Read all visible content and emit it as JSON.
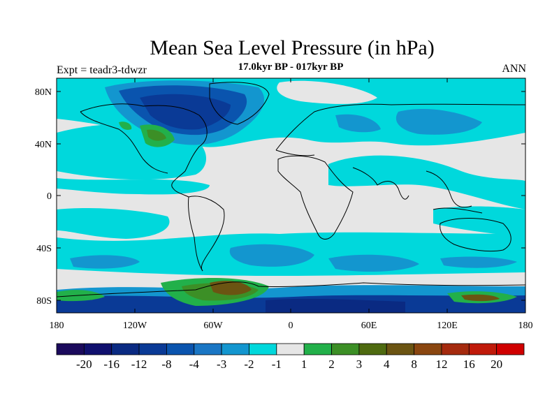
{
  "title": "Mean Sea Level Pressure (in hPa)",
  "subtitle": "17.0kyr BP - 017kyr BP",
  "expt_label": "Expt = teadr3-tdwzr",
  "season_label": "ANN",
  "map": {
    "lat_ticks": [
      "80N",
      "40N",
      "0",
      "40S",
      "80S"
    ],
    "lon_ticks": [
      "180",
      "120W",
      "60W",
      "0",
      "60E",
      "120E",
      "180"
    ]
  },
  "colorbar": {
    "colors": [
      "#1b0a5c",
      "#10106e",
      "#0a2a82",
      "#0a3a96",
      "#0a54ae",
      "#1a76c4",
      "#1396cf",
      "#00d8dc",
      "#e6e6e6",
      "#22b04a",
      "#3c8f26",
      "#4e6a10",
      "#6b5412",
      "#8a4610",
      "#a52a0e",
      "#c01a0a",
      "#d00000"
    ],
    "labels": [
      "-20",
      "-16",
      "-12",
      "-8",
      "-4",
      "-3",
      "-2",
      "-1",
      "1",
      "2",
      "3",
      "4",
      "8",
      "12",
      "16",
      "20"
    ]
  }
}
